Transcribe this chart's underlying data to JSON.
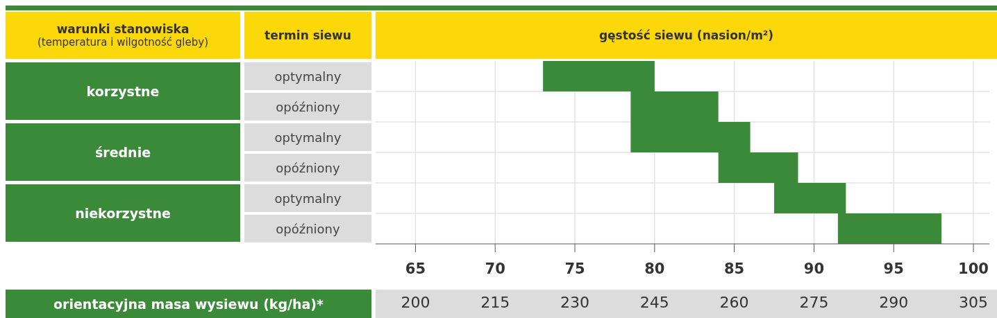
{
  "chart_data": {
    "type": "bar",
    "orientation": "horizontal",
    "xlabel": "gęstość siewu (nasion/m²)",
    "ylabel": "termin siewu",
    "x2label": "orientacyjna masa wysiewu (kg/ha)*",
    "annotations": [
      "warunki stanowiska",
      "(temperatura i wilgotność gleby)",
      "korzystne",
      "średnie",
      "niekorzystne"
    ],
    "categories": [
      "optymalny",
      "opóźniony",
      "optymalny",
      "opóźniony",
      "optymalny",
      "opóźniony"
    ],
    "base": [
      73,
      78.5,
      78.5,
      84,
      87.5,
      91.5
    ],
    "values": [
      7,
      5.5,
      7.5,
      5,
      4.5,
      6.5
    ],
    "color": "#3a8a3a",
    "xlim": [
      62.5,
      101
    ],
    "xticks": [
      65,
      70,
      75,
      80,
      85,
      90,
      95,
      100
    ],
    "x2lim": [
      192.5,
      308
    ],
    "x2ticks": [
      200,
      215,
      230,
      245,
      260,
      275,
      290,
      305
    ],
    "grid": true
  }
}
